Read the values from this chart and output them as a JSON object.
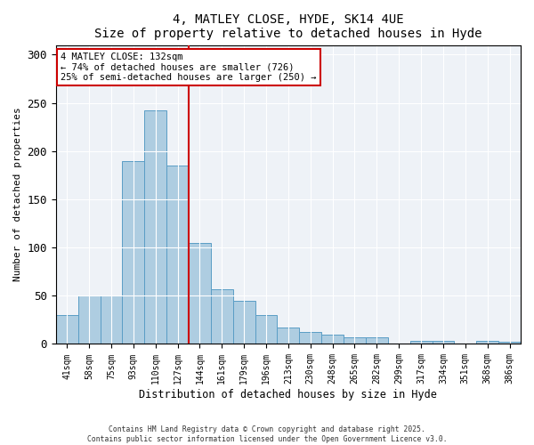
{
  "title1": "4, MATLEY CLOSE, HYDE, SK14 4UE",
  "title2": "Size of property relative to detached houses in Hyde",
  "xlabel": "Distribution of detached houses by size in Hyde",
  "ylabel": "Number of detached properties",
  "categories": [
    "41sqm",
    "58sqm",
    "75sqm",
    "93sqm",
    "110sqm",
    "127sqm",
    "144sqm",
    "161sqm",
    "179sqm",
    "196sqm",
    "213sqm",
    "230sqm",
    "248sqm",
    "265sqm",
    "282sqm",
    "299sqm",
    "317sqm",
    "334sqm",
    "351sqm",
    "368sqm",
    "386sqm"
  ],
  "values": [
    30,
    50,
    50,
    190,
    242,
    185,
    105,
    57,
    45,
    30,
    17,
    12,
    10,
    7,
    7,
    0,
    3,
    3,
    0,
    3,
    2
  ],
  "bar_color": "#aecde1",
  "bar_edge_color": "#5a9dc5",
  "vline_x_index": 6,
  "vline_color": "#cc0000",
  "annotation_line1": "4 MATLEY CLOSE: 132sqm",
  "annotation_line2": "← 74% of detached houses are smaller (726)",
  "annotation_line3": "25% of semi-detached houses are larger (250) →",
  "annotation_box_color": "#cc0000",
  "ylim": [
    0,
    310
  ],
  "yticks": [
    0,
    50,
    100,
    150,
    200,
    250,
    300
  ],
  "bg_color": "#eef2f7",
  "footer1": "Contains HM Land Registry data © Crown copyright and database right 2025.",
  "footer2": "Contains public sector information licensed under the Open Government Licence v3.0."
}
